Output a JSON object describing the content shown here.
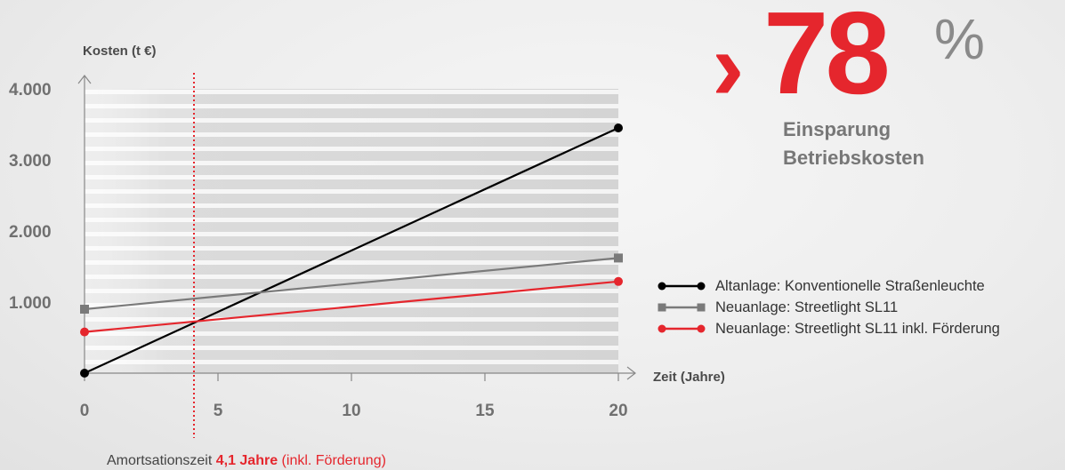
{
  "chart_data": {
    "type": "line",
    "ylabel": "Kosten (t €)",
    "xlabel": "Zeit (Jahre)",
    "xlim": [
      0,
      20
    ],
    "ylim": [
      0,
      4000
    ],
    "x_ticks": [
      0,
      5,
      10,
      15,
      20
    ],
    "x_tick_labels": [
      "0",
      "5",
      "10",
      "15",
      "20"
    ],
    "y_ticks": [
      1000,
      2000,
      3000,
      4000
    ],
    "y_tick_labels": [
      "1.000",
      "2.000",
      "3.000",
      "4.000"
    ],
    "series": [
      {
        "name": "Altanlage: Konventionelle Straßenleuchte",
        "color": "#000000",
        "marker": "circle",
        "x": [
          0,
          20
        ],
        "y": [
          0,
          3450
        ]
      },
      {
        "name": "Neuanlage: Streetlight SL11",
        "color": "#7a7a7a",
        "marker": "square",
        "x": [
          0,
          20
        ],
        "y": [
          900,
          1620
        ]
      },
      {
        "name": "Neuanlage: Streetlight SL11 inkl. Förderung",
        "color": "#e5262d",
        "marker": "circle",
        "x": [
          0,
          20
        ],
        "y": [
          580,
          1290
        ]
      }
    ],
    "annotation": {
      "x": 4.1,
      "color": "#e5262d",
      "text_prefix": "Amortsationszeit ",
      "text_highlight": "4,1 Jahre",
      "text_suffix": " (inkl. Förderung)"
    },
    "legend_position": "right"
  },
  "kpi": {
    "symbol": "›",
    "value": "78",
    "unit": "%",
    "label_line1": "Einsparung",
    "label_line2": "Betriebskosten",
    "color": "#e5262d"
  }
}
